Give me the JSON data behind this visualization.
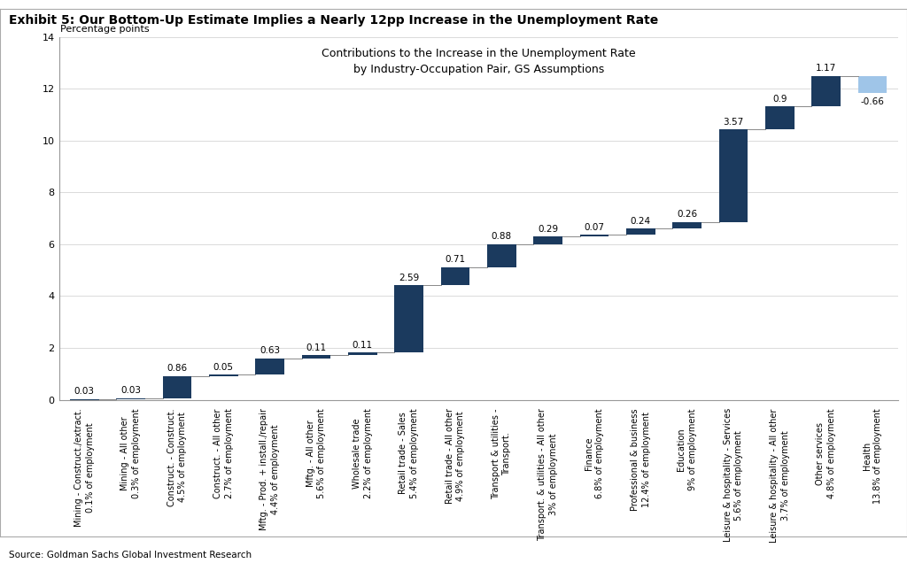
{
  "title_exhibit": "Exhibit 5: Our Bottom-Up Estimate Implies a Nearly 12pp Increase in the Unemployment Rate",
  "chart_title": "Contributions to the Increase in the Unemployment Rate\nby Industry-Occupation Pair, GS Assumptions",
  "ylabel": "Percentage points",
  "source": "Source: Goldman Sachs Global Investment Research",
  "ylim": [
    0,
    14
  ],
  "yticks": [
    0,
    2,
    4,
    6,
    8,
    10,
    12,
    14
  ],
  "categories": [
    "Mining - Construct./extract.\n0.1% of employment",
    "Mining - All other\n0.3% of employment",
    "Construct. - Construct.\n4.5% of employment",
    "Construct. - All other\n2.7% of employment",
    "Mftg. - Prod. + install./repair\n4.4% of employment",
    "Mftg. - All other\n5.6% of employment",
    "Wholesale trade\n2.2% of employment",
    "Retail trade - Sales\n5.4% of employment",
    "Retail trade - All other\n4.9% of employment",
    "Transport & utilities -\nTransport.",
    "Transport. & utilities - All other\n3% of employment",
    "Finance\n6.8% of employment",
    "Professional & business\n12.4% of employment",
    "Education\n9% of employment",
    "Leisure & hospitality - Services\n5.6% of employment",
    "Leisure & hospitality - All other\n3.7% of employment",
    "Other services\n4.8% of employment",
    "Health\n13.8% of employment"
  ],
  "values": [
    0.03,
    0.03,
    0.86,
    0.05,
    0.63,
    0.11,
    0.11,
    2.59,
    0.71,
    0.88,
    0.29,
    0.07,
    0.24,
    0.26,
    3.57,
    0.9,
    1.17,
    -0.66
  ],
  "bar_color_dark": "#1b3a5e",
  "bar_color_light": "#9fc5e8",
  "background_color": "#ffffff",
  "plot_bg_color": "#ffffff",
  "exhibit_title_fontsize": 10,
  "chart_title_fontsize": 9,
  "label_fontsize": 7.0,
  "tick_fontsize": 8,
  "value_fontsize": 7.5,
  "ylabel_fontsize": 8
}
